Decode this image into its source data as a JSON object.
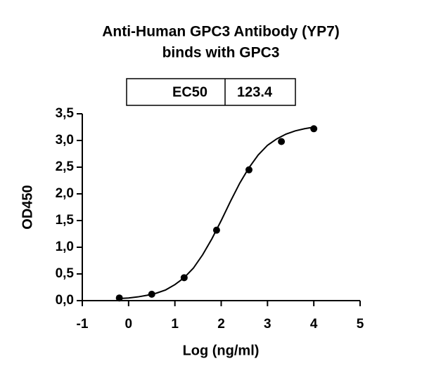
{
  "chart_data": {
    "type": "scatter",
    "title": [
      "Anti-Human GPC3 Antibody (YP7)",
      "binds with GPC3"
    ],
    "annotation_table": {
      "label": "EC50",
      "value": "123.4"
    },
    "x_label": "Log (ng/ml)",
    "y_label": "OD450",
    "xlim": [
      -1,
      5
    ],
    "xticks": [
      -1,
      0,
      1,
      2,
      3,
      4,
      5
    ],
    "ylim": [
      0,
      3.5
    ],
    "yticks": [
      {
        "value": 0,
        "label": "0,0"
      },
      {
        "value": 0.5,
        "label": "0,5"
      },
      {
        "value": 1,
        "label": "1,0"
      },
      {
        "value": 1.5,
        "label": "1,5"
      },
      {
        "value": 2,
        "label": "2,0"
      },
      {
        "value": 2.5,
        "label": "2,5"
      },
      {
        "value": 3,
        "label": "3,0"
      },
      {
        "value": 3.5,
        "label": "3,5"
      }
    ],
    "series": [
      {
        "style": "line",
        "color": "#000000",
        "x": [
          -0.2,
          0,
          0.2,
          0.4,
          0.6,
          0.8,
          1.0,
          1.2,
          1.4,
          1.6,
          1.8,
          2.0,
          2.2,
          2.4,
          2.6,
          2.8,
          3.0,
          3.2,
          3.4,
          3.6,
          3.8,
          4.0
        ],
        "values": [
          0.04,
          0.05,
          0.07,
          0.1,
          0.14,
          0.2,
          0.3,
          0.43,
          0.61,
          0.86,
          1.16,
          1.5,
          1.86,
          2.2,
          2.49,
          2.73,
          2.91,
          3.03,
          3.12,
          3.18,
          3.22,
          3.25
        ]
      },
      {
        "style": "markers",
        "color": "#000000",
        "x": [
          -0.2,
          0.5,
          1.2,
          1.9,
          2.6,
          3.3,
          4.0
        ],
        "values": [
          0.05,
          0.12,
          0.43,
          1.32,
          2.45,
          2.98,
          3.22
        ]
      }
    ]
  }
}
